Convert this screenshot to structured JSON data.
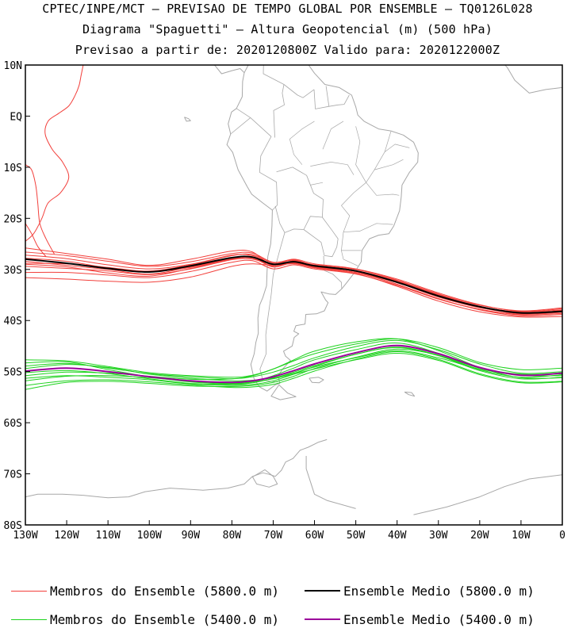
{
  "header": {
    "line1": "CPTEC/INPE/MCT — PREVISAO DE TEMPO GLOBAL POR ENSEMBLE — TQ0126L028",
    "line2": "Diagrama \"Spaguetti\" — Altura Geopotencial (m) (500 hPa)",
    "line3": "Previsao a partir de: 2020120800Z  Valido para: 2020122000Z"
  },
  "colors": {
    "member_5800": "#f2403c",
    "member_5400": "#1ed21e",
    "mean_5800": "#000000",
    "mean_5400": "#9b009b",
    "coastline": "#a8a8a8",
    "frame": "#000000"
  },
  "chart_data": {
    "type": "line",
    "xlabel": "",
    "ylabel": "",
    "xlim": [
      -130,
      0
    ],
    "ylim": [
      -80,
      10
    ],
    "x_ticks": [
      "130W",
      "120W",
      "110W",
      "100W",
      "90W",
      "80W",
      "70W",
      "60W",
      "50W",
      "40W",
      "30W",
      "20W",
      "10W",
      "0"
    ],
    "x_tick_values": [
      -130,
      -120,
      -110,
      -100,
      -90,
      -80,
      -70,
      -60,
      -50,
      -40,
      -30,
      -20,
      -10,
      0
    ],
    "y_ticks": [
      "10N",
      "EQ",
      "10S",
      "20S",
      "30S",
      "40S",
      "50S",
      "60S",
      "70S",
      "80S"
    ],
    "y_tick_values": [
      10,
      0,
      -10,
      -20,
      -30,
      -40,
      -50,
      -60,
      -70,
      -80
    ],
    "x": [
      -130,
      -120,
      -110,
      -100,
      -90,
      -80,
      -75,
      -70,
      -65,
      -60,
      -50,
      -40,
      -30,
      -20,
      -10,
      0
    ],
    "series": [
      {
        "name": "Ensemble Medio (5800.0 m)",
        "values": [
          -28.0,
          -28.8,
          -29.8,
          -30.5,
          -29.3,
          -27.7,
          -27.6,
          -29.0,
          -28.5,
          -29.3,
          -30.3,
          -32.5,
          -35.2,
          -37.3,
          -38.5,
          -38.2
        ]
      },
      {
        "name": "Ensemble Medio (5400.0 m)",
        "values": [
          -49.9,
          -49.3,
          -50.0,
          -51.0,
          -51.8,
          -52.1,
          -51.8,
          -51.0,
          -49.8,
          -48.5,
          -46.3,
          -44.9,
          -46.5,
          -49.2,
          -50.7,
          -50.3
        ]
      }
    ],
    "members_5800": [
      [
        -28.4,
        -29.2,
        -30.0,
        -30.9,
        -29.5,
        -27.9,
        -27.6,
        -29.5,
        -28.4,
        -29.2,
        -30.2,
        -32.3,
        -35.0,
        -37.3,
        -38.7,
        -38.0
      ],
      [
        -27.2,
        -27.9,
        -29.1,
        -29.9,
        -29.0,
        -27.2,
        -27.3,
        -28.9,
        -28.2,
        -29.4,
        -30.6,
        -32.9,
        -35.8,
        -37.8,
        -38.9,
        -38.6
      ],
      [
        -29.4,
        -29.8,
        -30.3,
        -31.0,
        -29.9,
        -28.1,
        -28.0,
        -29.1,
        -28.8,
        -29.7,
        -30.6,
        -32.6,
        -35.3,
        -37.4,
        -38.3,
        -37.9
      ],
      [
        -26.6,
        -27.3,
        -28.4,
        -29.4,
        -28.5,
        -26.9,
        -26.8,
        -28.6,
        -28.1,
        -29.2,
        -30.4,
        -32.6,
        -35.4,
        -37.5,
        -38.6,
        -38.4
      ],
      [
        -30.6,
        -30.6,
        -31.1,
        -31.6,
        -30.4,
        -28.6,
        -28.3,
        -29.9,
        -29.1,
        -29.9,
        -30.9,
        -33.1,
        -35.8,
        -37.8,
        -38.8,
        -38.4
      ],
      [
        -27.8,
        -28.4,
        -29.7,
        -30.3,
        -29.1,
        -27.3,
        -27.1,
        -28.7,
        -28.0,
        -28.9,
        -29.9,
        -31.9,
        -34.6,
        -36.9,
        -38.2,
        -37.7
      ],
      [
        -31.6,
        -31.9,
        -32.3,
        -32.5,
        -31.5,
        -29.4,
        -28.9,
        -29.2,
        -28.9,
        -29.6,
        -30.6,
        -32.9,
        -35.7,
        -37.9,
        -39.1,
        -38.8
      ],
      [
        -25.8,
        -26.9,
        -28.0,
        -29.2,
        -28.0,
        -26.4,
        -26.6,
        -29.4,
        -28.3,
        -29.1,
        -30.0,
        -32.1,
        -34.8,
        -37.0,
        -38.1,
        -37.5
      ],
      [
        -29.0,
        -29.5,
        -30.7,
        -31.3,
        -29.8,
        -28.0,
        -27.8,
        -29.5,
        -28.7,
        -29.5,
        -30.3,
        -32.2,
        -34.9,
        -37.2,
        -38.4,
        -38.1
      ],
      [
        -28.8,
        -28.9,
        -29.6,
        -30.4,
        -29.6,
        -27.8,
        -27.5,
        -29.2,
        -28.6,
        -29.7,
        -30.8,
        -33.3,
        -36.2,
        -38.3,
        -39.3,
        -39.2
      ]
    ],
    "members_5400": [
      [
        -50.2,
        -49.8,
        -50.4,
        -51.4,
        -52.3,
        -52.5,
        -52.2,
        -51.3,
        -50.1,
        -48.8,
        -46.6,
        -45.2,
        -46.8,
        -49.6,
        -51.1,
        -50.6
      ],
      [
        -48.9,
        -48.4,
        -49.3,
        -50.4,
        -51.0,
        -51.4,
        -51.0,
        -50.1,
        -48.8,
        -47.3,
        -45.1,
        -43.9,
        -45.7,
        -48.5,
        -50.3,
        -50.0
      ],
      [
        -51.3,
        -50.8,
        -51.1,
        -51.6,
        -52.4,
        -52.7,
        -52.5,
        -51.8,
        -50.5,
        -49.0,
        -46.6,
        -45.3,
        -46.9,
        -49.8,
        -51.4,
        -51.1
      ],
      [
        -47.7,
        -47.9,
        -49.0,
        -50.2,
        -50.8,
        -51.1,
        -50.7,
        -49.5,
        -47.9,
        -46.5,
        -44.6,
        -43.6,
        -45.3,
        -48.2,
        -49.6,
        -49.3
      ],
      [
        -52.7,
        -51.8,
        -51.6,
        -52.0,
        -52.6,
        -53.1,
        -53.0,
        -52.5,
        -51.3,
        -49.9,
        -47.6,
        -46.1,
        -47.6,
        -50.4,
        -52.0,
        -51.9
      ],
      [
        -49.4,
        -48.6,
        -49.2,
        -50.5,
        -51.3,
        -51.8,
        -51.7,
        -51.2,
        -50.3,
        -49.1,
        -47.3,
        -45.9,
        -47.3,
        -49.5,
        -50.6,
        -50.2
      ],
      [
        -50.8,
        -50.1,
        -50.3,
        -50.9,
        -51.5,
        -51.4,
        -50.8,
        -49.5,
        -47.7,
        -46.0,
        -44.2,
        -43.6,
        -45.9,
        -49.2,
        -51.2,
        -51.2
      ],
      [
        -53.5,
        -52.1,
        -51.9,
        -52.3,
        -52.8,
        -52.9,
        -52.7,
        -52.1,
        -50.9,
        -49.4,
        -47.2,
        -45.6,
        -46.8,
        -49.3,
        -50.5,
        -50.4
      ],
      [
        -48.3,
        -48.1,
        -49.6,
        -51.0,
        -52.0,
        -52.4,
        -52.0,
        -50.8,
        -49.3,
        -47.7,
        -45.7,
        -44.4,
        -46.4,
        -49.2,
        -50.7,
        -50.8
      ],
      [
        -51.8,
        -50.9,
        -50.8,
        -51.2,
        -51.9,
        -52.3,
        -52.0,
        -51.4,
        -50.5,
        -49.5,
        -47.7,
        -46.4,
        -47.8,
        -50.6,
        -52.2,
        -52.0
      ]
    ],
    "northern_fragments_5800": [
      [
        [
          -116,
          10
        ],
        [
          -116.5,
          8
        ],
        [
          -117,
          6
        ],
        [
          -118,
          4
        ],
        [
          -119.5,
          2
        ],
        [
          -122,
          0.5
        ],
        [
          -124.5,
          -1
        ],
        [
          -125.2,
          -3.5
        ],
        [
          -123.5,
          -6.5
        ],
        [
          -121,
          -9
        ],
        [
          -119.5,
          -12
        ],
        [
          -121.5,
          -15
        ],
        [
          -124.5,
          -17
        ],
        [
          -126,
          -20
        ],
        [
          -128,
          -23
        ],
        [
          -130,
          -24.5
        ]
      ],
      [
        [
          -130,
          -9.5
        ],
        [
          -128.5,
          -10.5
        ],
        [
          -127.5,
          -13.5
        ],
        [
          -127,
          -17
        ],
        [
          -126.5,
          -21
        ],
        [
          -125,
          -24
        ],
        [
          -123,
          -27
        ]
      ],
      [
        [
          -130,
          -21
        ],
        [
          -128.5,
          -23
        ],
        [
          -127,
          -25.5
        ],
        [
          -125,
          -27.5
        ]
      ]
    ]
  },
  "legend": {
    "items": [
      {
        "label": "Membros do Ensemble (5800.0 m)",
        "color": "#f2403c",
        "width": 1
      },
      {
        "label": "Ensemble Medio (5800.0 m)",
        "color": "#000000",
        "width": 2
      },
      {
        "label": "Membros do Ensemble (5400.0 m)",
        "color": "#1ed21e",
        "width": 1
      },
      {
        "label": "Ensemble Medio (5400.0 m)",
        "color": "#9b009b",
        "width": 2
      }
    ]
  }
}
